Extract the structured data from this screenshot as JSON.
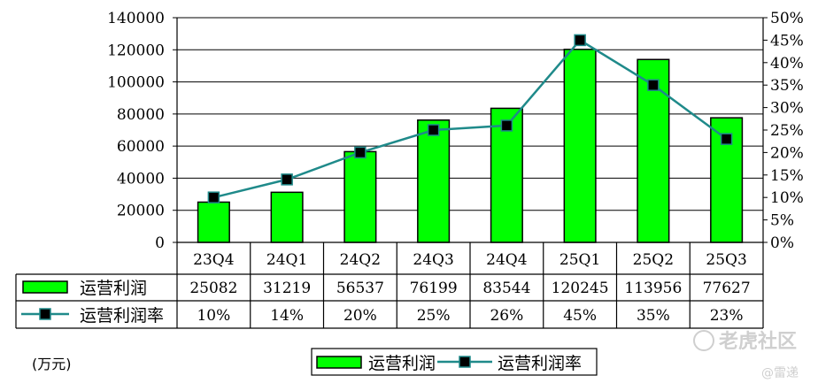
{
  "chart_data": {
    "type": "bar",
    "categories": [
      "23Q4",
      "24Q1",
      "24Q2",
      "24Q3",
      "24Q4",
      "25Q1",
      "25Q2",
      "25Q3"
    ],
    "series": [
      {
        "name": "运营利润",
        "type": "bar",
        "axis": "left",
        "values": [
          25082,
          31219,
          56537,
          76199,
          83544,
          120245,
          113956,
          77627
        ],
        "table_values": [
          "25082",
          "31219",
          "56537",
          "76199",
          "83544",
          "120245",
          "113956",
          "77627"
        ],
        "color": "#00ff00"
      },
      {
        "name": "运营利润率",
        "type": "line",
        "axis": "right",
        "values": [
          10,
          14,
          20,
          25,
          26,
          45,
          35,
          23
        ],
        "table_values": [
          "10%",
          "14%",
          "20%",
          "25%",
          "26%",
          "45%",
          "35%",
          "23%"
        ],
        "color": "#1f8a8a",
        "marker_color": "#000000"
      }
    ],
    "y_left": {
      "ylim": [
        0,
        140000
      ],
      "ticks": [
        "0",
        "20000",
        "40000",
        "60000",
        "80000",
        "100000",
        "120000",
        "140000"
      ]
    },
    "y_right": {
      "ylim": [
        0,
        50
      ],
      "ticks": [
        "0%",
        "5%",
        "10%",
        "15%",
        "20%",
        "25%",
        "30%",
        "35%",
        "40%",
        "45%",
        "50%"
      ]
    },
    "legend": {
      "position": "bottom-center"
    },
    "unit_label": "(万元)",
    "grid": true
  },
  "watermark": {
    "brand": "老虎社区",
    "author": "@雷递"
  }
}
